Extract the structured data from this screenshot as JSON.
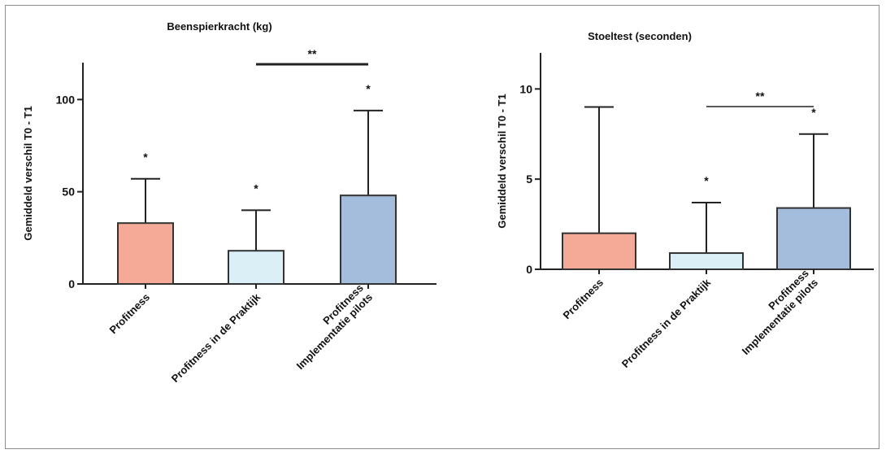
{
  "chart_data": [
    {
      "type": "bar",
      "title": "Beenspierkracht (kg)",
      "ylabel": "Gemiddeld verschil T0 - T1",
      "ylim": [
        0,
        120
      ],
      "yticks": [
        0,
        50,
        100
      ],
      "categories": [
        [
          "Profitness"
        ],
        [
          "Profitness in de Praktijk"
        ],
        [
          "Profitness",
          "Implementatie pilots"
        ]
      ],
      "values": [
        33,
        18,
        48
      ],
      "errors": [
        57,
        40,
        94
      ],
      "colors": [
        "#f4aa96",
        "#dbeff7",
        "#a5bddd"
      ],
      "significance": [
        "*",
        "*",
        "*"
      ],
      "bracket": {
        "from": 1,
        "to": 2,
        "label": "**"
      }
    },
    {
      "type": "bar",
      "title": "Stoeltest (seconden)",
      "ylabel": "Gemiddeld verschil T0 - T1",
      "ylim": [
        0,
        12
      ],
      "yticks": [
        0,
        5,
        10
      ],
      "categories": [
        [
          "Profitness"
        ],
        [
          "Profitness in de Praktijk"
        ],
        [
          "Profitness",
          "Implementatie pilots"
        ]
      ],
      "values": [
        2.0,
        0.9,
        3.4
      ],
      "errors": [
        9.0,
        3.7,
        7.5
      ],
      "colors": [
        "#f4aa96",
        "#dbeff7",
        "#a5bddd"
      ],
      "significance": [
        "",
        "*",
        "*"
      ],
      "bracket": {
        "from": 1,
        "to": 2,
        "label": "**"
      }
    }
  ]
}
